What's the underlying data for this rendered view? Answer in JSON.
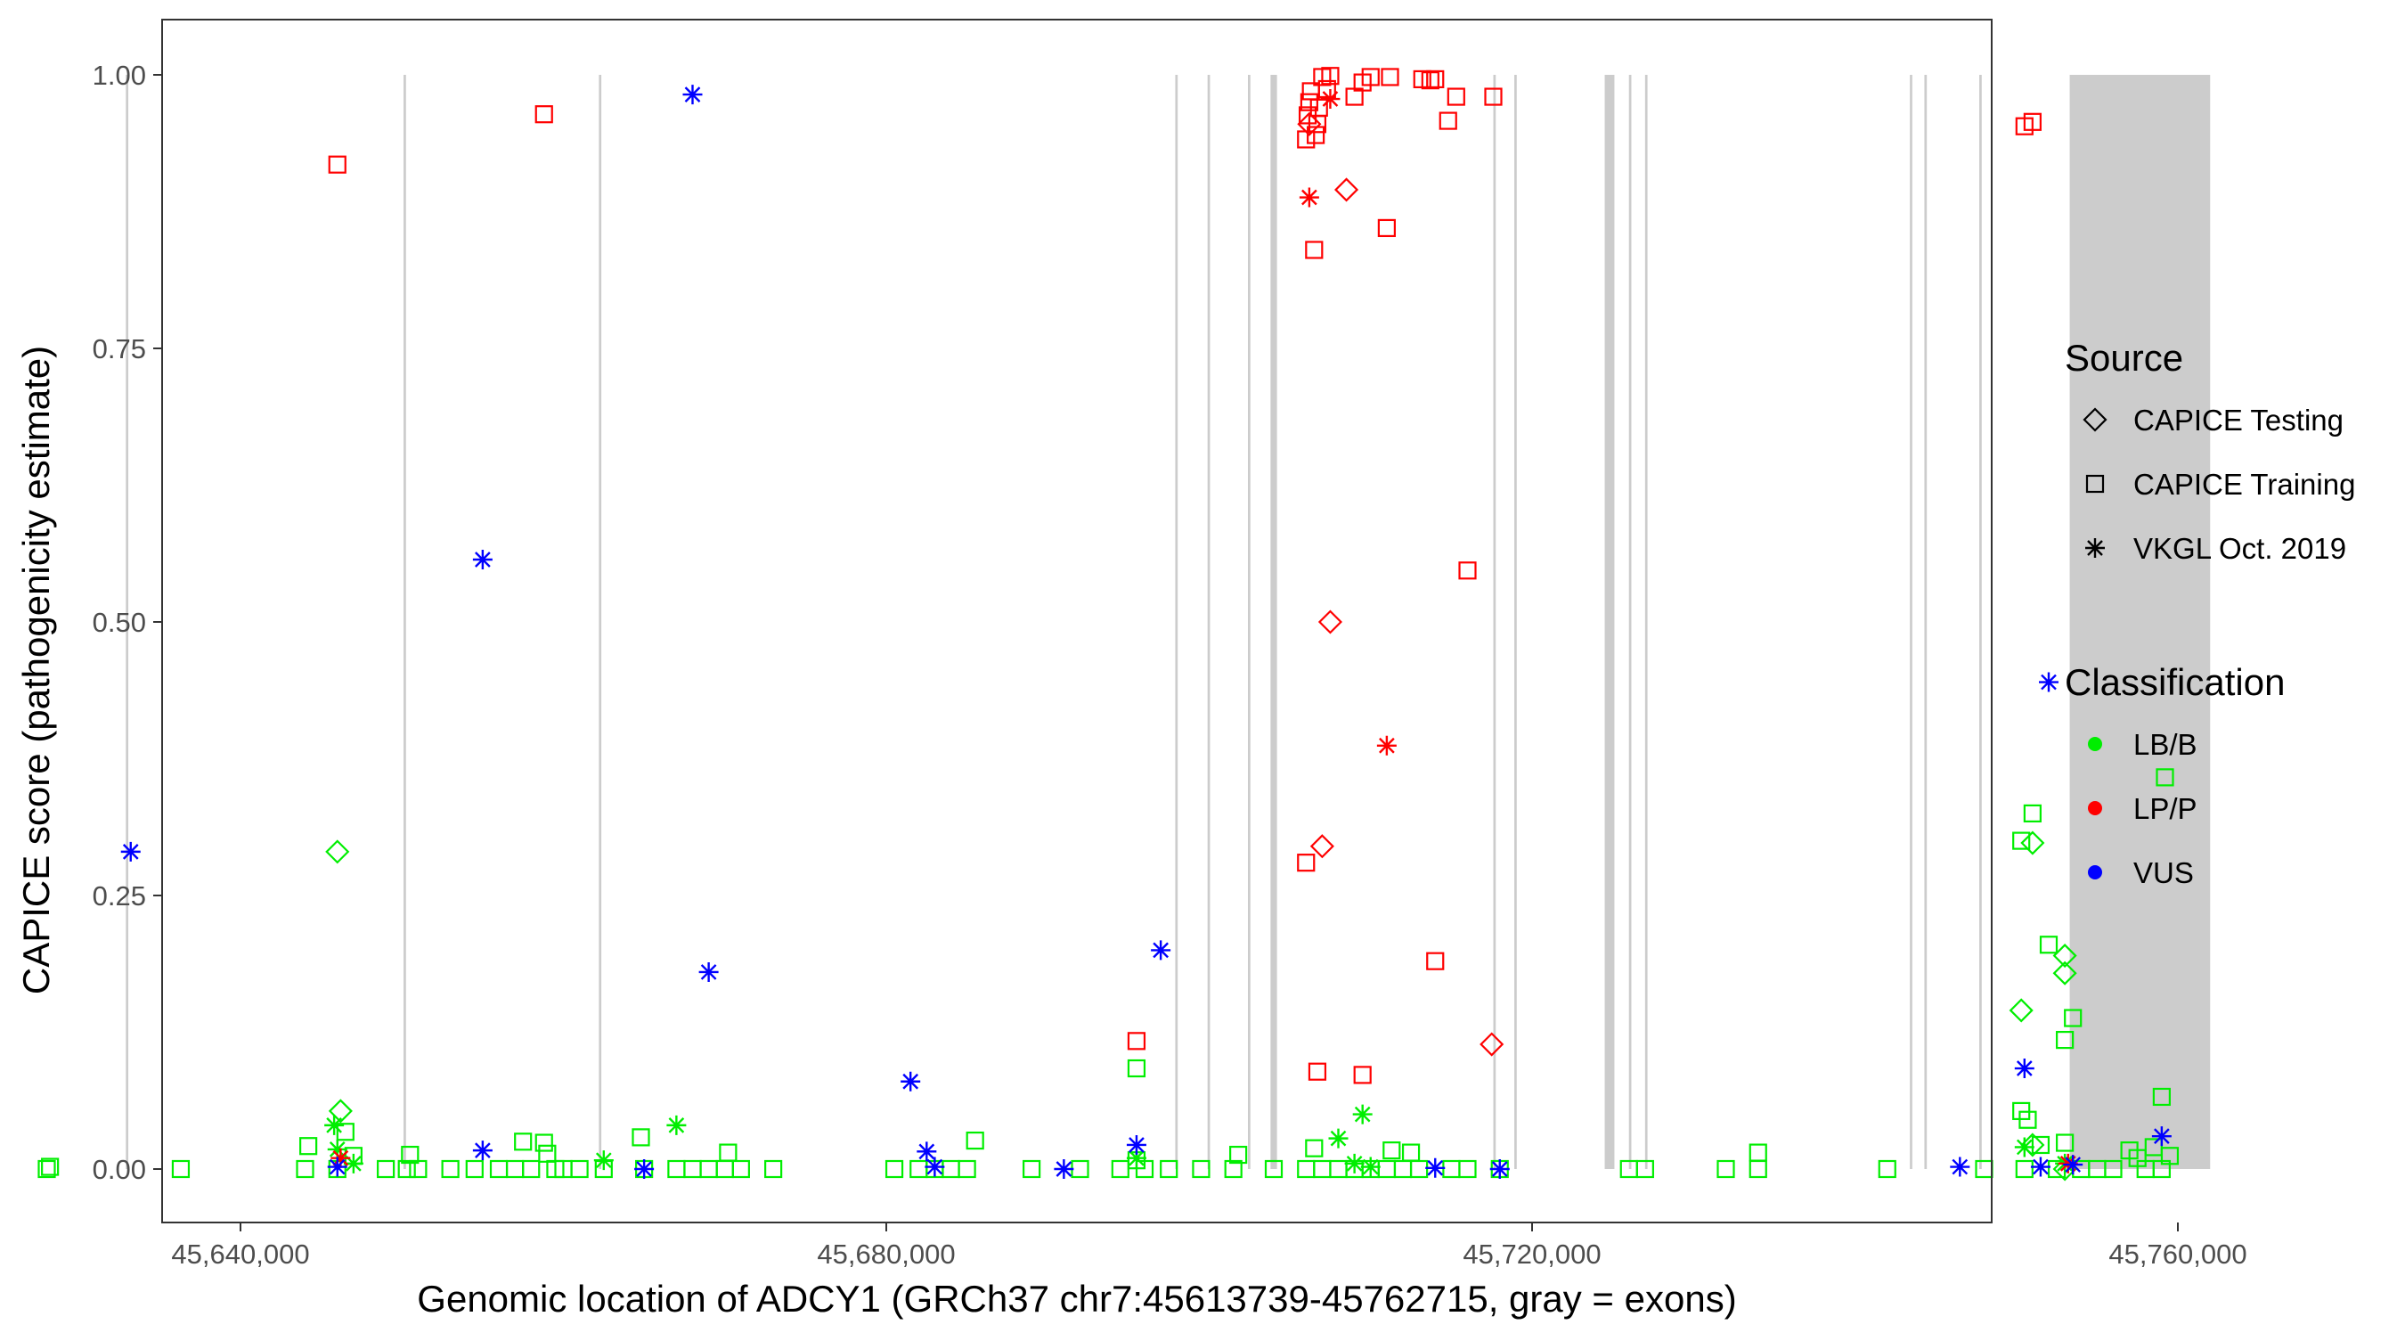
{
  "chart_data": {
    "type": "scatter",
    "xlabel": "Genomic location of ADCY1 (GRCh37 chr7:45613739-45762715, gray = exons)",
    "ylabel": "CAPICE score (pathogenicity estimate)",
    "xlim": [
      45613739,
      45762715
    ],
    "ylim": [
      0,
      1
    ],
    "x_ticks": [
      {
        "value": 45640000,
        "label": "45,640,000"
      },
      {
        "value": 45680000,
        "label": "45,680,000"
      },
      {
        "value": 45720000,
        "label": "45,720,000"
      },
      {
        "value": 45760000,
        "label": "45,760,000"
      }
    ],
    "y_ticks": [
      {
        "value": 0.0,
        "label": "0.00"
      },
      {
        "value": 0.25,
        "label": "0.25"
      },
      {
        "value": 0.5,
        "label": "0.50"
      },
      {
        "value": 0.75,
        "label": "0.75"
      },
      {
        "value": 1.0,
        "label": "1.00"
      }
    ],
    "grid": false,
    "exons": [
      [
        45614300,
        45614900
      ],
      [
        45632900,
        45633050
      ],
      [
        45650100,
        45650250
      ],
      [
        45662200,
        45662350
      ],
      [
        45697900,
        45698050
      ],
      [
        45699900,
        45700050
      ],
      [
        45702400,
        45702550
      ],
      [
        45703800,
        45704200
      ],
      [
        45717600,
        45717750
      ],
      [
        45718900,
        45719050
      ],
      [
        45724500,
        45725100
      ],
      [
        45726000,
        45726150
      ],
      [
        45727000,
        45727150
      ],
      [
        45743400,
        45743550
      ],
      [
        45744300,
        45744450
      ],
      [
        45747700,
        45747850
      ],
      [
        45753300,
        45762000
      ]
    ],
    "legend": {
      "position": "right",
      "source_title": "Source",
      "source_items": [
        {
          "label": "CAPICE Testing",
          "shape": "diamond"
        },
        {
          "label": "CAPICE Training",
          "shape": "square"
        },
        {
          "label": "VKGL Oct. 2019",
          "shape": "asterisk"
        }
      ],
      "class_title": "Classification",
      "class_items": [
        {
          "label": "LB/B",
          "color": "#00ee00"
        },
        {
          "label": "LP/P",
          "color": "#ff0000"
        },
        {
          "label": "VUS",
          "color": "#0000ff"
        }
      ]
    },
    "colors": {
      "LB/B": "#00ee00",
      "LP/P": "#ff0000",
      "VUS": "#0000ff"
    },
    "series": [
      {
        "source": "CAPICE Training",
        "classification": "LB/B",
        "points": [
          [
            45614500,
            0.0
          ],
          [
            45620200,
            0.0
          ],
          [
            45623200,
            0.007
          ],
          [
            45624000,
            0.0
          ],
          [
            45628000,
            0.0
          ],
          [
            45628200,
            0.002
          ],
          [
            45636300,
            0.0
          ],
          [
            45644000,
            0.0
          ],
          [
            45644200,
            0.021
          ],
          [
            45646000,
            0.0
          ],
          [
            45646500,
            0.034
          ],
          [
            45647000,
            0.012
          ],
          [
            45649000,
            0.0
          ],
          [
            45650300,
            0.0
          ],
          [
            45650500,
            0.013
          ],
          [
            45651000,
            0.0
          ],
          [
            45653000,
            0.0
          ],
          [
            45654500,
            0.0
          ],
          [
            45656000,
            0.0
          ],
          [
            45657000,
            0.0
          ],
          [
            45657500,
            0.025
          ],
          [
            45658000,
            0.0
          ],
          [
            45658800,
            0.024
          ],
          [
            45659000,
            0.014
          ],
          [
            45659500,
            0.0
          ],
          [
            45660000,
            0.0
          ],
          [
            45661000,
            0.0
          ],
          [
            45662500,
            0.0
          ],
          [
            45664800,
            0.029
          ],
          [
            45665000,
            0.0
          ],
          [
            45667000,
            0.0
          ],
          [
            45668000,
            0.0
          ],
          [
            45669000,
            0.0
          ],
          [
            45670000,
            0.0
          ],
          [
            45670200,
            0.015
          ],
          [
            45671000,
            0.0
          ],
          [
            45673000,
            0.0
          ],
          [
            45680500,
            0.0
          ],
          [
            45682000,
            0.0
          ],
          [
            45683000,
            0.0
          ],
          [
            45684000,
            0.0
          ],
          [
            45685000,
            0.0
          ],
          [
            45685500,
            0.026
          ],
          [
            45689000,
            0.0
          ],
          [
            45692000,
            0.0
          ],
          [
            45694500,
            0.0
          ],
          [
            45695500,
            0.008
          ],
          [
            45696000,
            0.0
          ],
          [
            45695500,
            0.092
          ],
          [
            45697500,
            0.0
          ],
          [
            45699500,
            0.0
          ],
          [
            45701500,
            0.0
          ],
          [
            45701800,
            0.013
          ],
          [
            45704000,
            0.0
          ],
          [
            45706000,
            0.0
          ],
          [
            45707000,
            0.0
          ],
          [
            45706500,
            0.019
          ],
          [
            45708000,
            0.0
          ],
          [
            45709000,
            0.0
          ],
          [
            45710000,
            0.0
          ],
          [
            45711000,
            0.0
          ],
          [
            45711300,
            0.017
          ],
          [
            45712000,
            0.0
          ],
          [
            45712500,
            0.015
          ],
          [
            45713000,
            0.0
          ],
          [
            45715000,
            0.0
          ],
          [
            45716000,
            0.0
          ],
          [
            45718000,
            0.0
          ],
          [
            45726000,
            0.0
          ],
          [
            45727000,
            0.0
          ],
          [
            45732000,
            0.0
          ],
          [
            45734000,
            0.0
          ],
          [
            45734000,
            0.015
          ],
          [
            45742000,
            0.0
          ],
          [
            45748000,
            0.0
          ],
          [
            45750500,
            0.0
          ],
          [
            45750300,
            0.053
          ],
          [
            45750700,
            0.045
          ],
          [
            45750300,
            0.3
          ],
          [
            45751000,
            0.325
          ],
          [
            45752000,
            0.205
          ],
          [
            45753000,
            0.118
          ],
          [
            45753500,
            0.138
          ],
          [
            45751500,
            0.022
          ],
          [
            45752500,
            0.0
          ],
          [
            45753000,
            0.024
          ],
          [
            45754000,
            0.0
          ],
          [
            45755000,
            0.0
          ],
          [
            45756000,
            0.0
          ],
          [
            45757000,
            0.017
          ],
          [
            45757500,
            0.01
          ],
          [
            45758000,
            0.0
          ],
          [
            45758500,
            0.02
          ],
          [
            45759000,
            0.0
          ],
          [
            45759500,
            0.012
          ],
          [
            45759000,
            0.066
          ],
          [
            45759200,
            0.358
          ]
        ]
      },
      {
        "source": "CAPICE Training",
        "classification": "LP/P",
        "points": [
          [
            45646000,
            0.918
          ],
          [
            45658800,
            0.964
          ],
          [
            45695500,
            0.117
          ],
          [
            45706000,
            0.28
          ],
          [
            45706500,
            0.84
          ],
          [
            45706700,
            0.089
          ],
          [
            45709500,
            0.086
          ],
          [
            45711000,
            0.86
          ],
          [
            45714000,
            0.19
          ],
          [
            45716000,
            0.547
          ],
          [
            45706000,
            0.941
          ],
          [
            45706100,
            0.963
          ],
          [
            45706200,
            0.975
          ],
          [
            45706300,
            0.985
          ],
          [
            45706600,
            0.945
          ],
          [
            45706700,
            0.955
          ],
          [
            45706800,
            0.97
          ],
          [
            45707000,
            0.998
          ],
          [
            45707300,
            0.987
          ],
          [
            45707500,
            0.999
          ],
          [
            45709000,
            0.98
          ],
          [
            45709500,
            0.993
          ],
          [
            45710000,
            0.998
          ],
          [
            45711200,
            0.998
          ],
          [
            45713200,
            0.996
          ],
          [
            45713700,
            0.995
          ],
          [
            45714000,
            0.996
          ],
          [
            45714800,
            0.958
          ],
          [
            45715300,
            0.98
          ],
          [
            45717600,
            0.98
          ],
          [
            45750500,
            0.953
          ],
          [
            45751000,
            0.957
          ]
        ]
      },
      {
        "source": "CAPICE Testing",
        "classification": "LB/B",
        "points": [
          [
            45646000,
            0.29
          ],
          [
            45646200,
            0.053
          ],
          [
            45750300,
            0.145
          ],
          [
            45751000,
            0.298
          ],
          [
            45753000,
            0.195
          ],
          [
            45753000,
            0.179
          ],
          [
            45751000,
            0.022
          ],
          [
            45753000,
            0.0
          ]
        ]
      },
      {
        "source": "CAPICE Testing",
        "classification": "LP/P",
        "points": [
          [
            45706200,
            0.955
          ],
          [
            45707500,
            0.5
          ],
          [
            45707000,
            0.295
          ],
          [
            45708500,
            0.895
          ],
          [
            45717500,
            0.114
          ]
        ]
      },
      {
        "source": "VKGL Oct. 2019",
        "classification": "LB/B",
        "points": [
          [
            45645800,
            0.04
          ],
          [
            45646000,
            0.018
          ],
          [
            45647000,
            0.005
          ],
          [
            45662500,
            0.008
          ],
          [
            45667000,
            0.04
          ],
          [
            45695500,
            0.01
          ],
          [
            45708000,
            0.028
          ],
          [
            45709500,
            0.05
          ],
          [
            45709000,
            0.005
          ],
          [
            45710000,
            0.002
          ],
          [
            45750500,
            0.02
          ],
          [
            45753000,
            0.005
          ]
        ]
      },
      {
        "source": "VKGL Oct. 2019",
        "classification": "LP/P",
        "points": [
          [
            45646200,
            0.01
          ],
          [
            45706200,
            0.888
          ],
          [
            45707500,
            0.978
          ],
          [
            45711000,
            0.387
          ],
          [
            45753200,
            0.005
          ]
        ]
      },
      {
        "source": "VKGL Oct. 2019",
        "classification": "VUS",
        "points": [
          [
            45633200,
            0.29
          ],
          [
            45646000,
            0.002
          ],
          [
            45655000,
            0.557
          ],
          [
            45655000,
            0.017
          ],
          [
            45668000,
            0.982
          ],
          [
            45669000,
            0.18
          ],
          [
            45665000,
            0.0
          ],
          [
            45681500,
            0.08
          ],
          [
            45682500,
            0.016
          ],
          [
            45683000,
            0.002
          ],
          [
            45691000,
            0.0
          ],
          [
            45695500,
            0.022
          ],
          [
            45697000,
            0.2
          ],
          [
            45714000,
            0.001
          ],
          [
            45718000,
            0.0
          ],
          [
            45746500,
            0.002
          ],
          [
            45750500,
            0.092
          ],
          [
            45751500,
            0.002
          ],
          [
            45752000,
            0.445
          ],
          [
            45753500,
            0.004
          ],
          [
            45759000,
            0.03
          ]
        ]
      }
    ]
  }
}
